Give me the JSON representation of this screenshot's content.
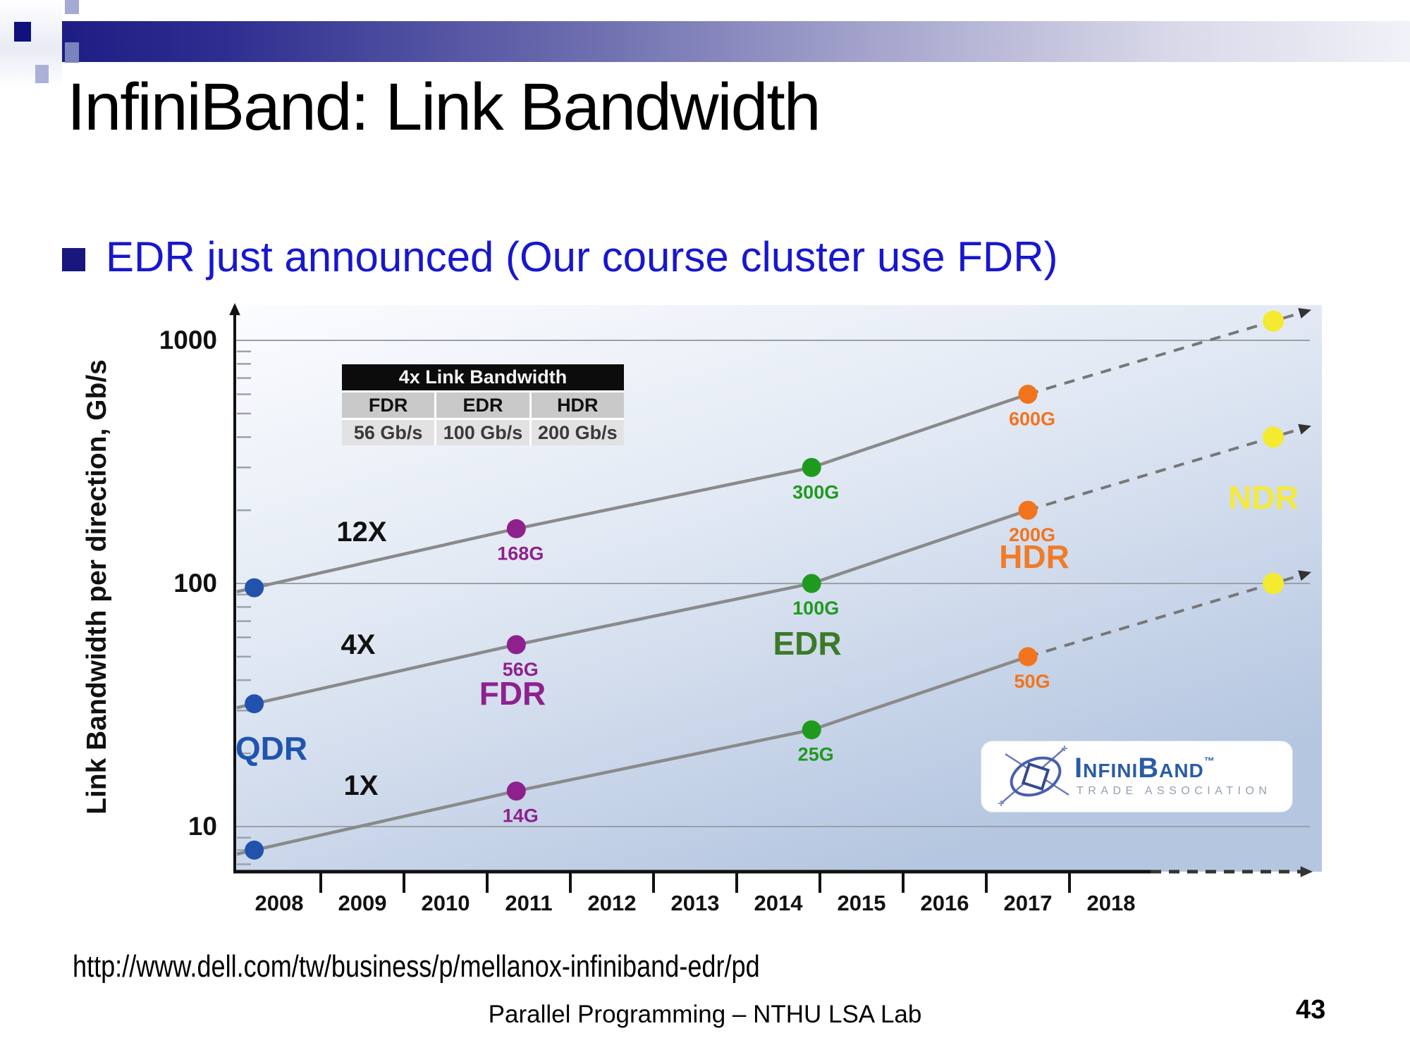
{
  "slide": {
    "title": "InfiniBand: Link Bandwidth",
    "bullet": "EDR just announced (Our course cluster use FDR)",
    "source_url": "http://www.dell.com/tw/business/p/mellanox-infiniband-edr/pd",
    "footer": "Parallel Programming – NTHU LSA Lab",
    "page_number": "43"
  },
  "logo": {
    "name": "InfiniBand",
    "tm": "™",
    "subtitle": "TRADE ASSOCIATION"
  },
  "chart_data": {
    "type": "line",
    "title": "",
    "ylabel": "Link Bandwidth per direction, Gb/s",
    "y_scale": "log",
    "y_ticks": [
      1000,
      100,
      10
    ],
    "x_tick_years": [
      2008,
      2009,
      2010,
      2011,
      2012,
      2013,
      2014,
      2015,
      2016,
      2017,
      2018
    ],
    "table": {
      "title": "4x Link Bandwidth",
      "columns": [
        "FDR",
        "EDR",
        "HDR"
      ],
      "values": [
        "56 Gb/s",
        "100 Gb/s",
        "200 Gb/s"
      ]
    },
    "generation_colors": {
      "QDR": "#2153ad",
      "FDR": "#8e218e",
      "EDR": "#1f9a1f",
      "HDR": "#f2741c",
      "NDR": "#f4ea2f"
    },
    "series": [
      {
        "name": "12X",
        "points": [
          {
            "year": 2007.7,
            "gbps": 96,
            "gen": "QDR",
            "label": ""
          },
          {
            "year": 2010.85,
            "gbps": 168,
            "gen": "FDR",
            "label": "168G"
          },
          {
            "year": 2014.4,
            "gbps": 300,
            "gen": "EDR",
            "label": "300G"
          },
          {
            "year": 2017,
            "gbps": 600,
            "gen": "HDR",
            "label": "600G"
          }
        ],
        "projected": [
          {
            "year": 2019.95,
            "gbps": 1200,
            "gen": "NDR",
            "label": ""
          }
        ]
      },
      {
        "name": "4X",
        "points": [
          {
            "year": 2007.7,
            "gbps": 32,
            "gen": "QDR",
            "label": ""
          },
          {
            "year": 2010.85,
            "gbps": 56,
            "gen": "FDR",
            "label": "56G"
          },
          {
            "year": 2014.4,
            "gbps": 100,
            "gen": "EDR",
            "label": "100G"
          },
          {
            "year": 2017,
            "gbps": 200,
            "gen": "HDR",
            "label": "200G"
          }
        ],
        "projected": [
          {
            "year": 2019.95,
            "gbps": 400,
            "gen": "NDR",
            "label": ""
          }
        ]
      },
      {
        "name": "1X",
        "points": [
          {
            "year": 2007.7,
            "gbps": 8,
            "gen": "QDR",
            "label": ""
          },
          {
            "year": 2010.85,
            "gbps": 14,
            "gen": "FDR",
            "label": "14G"
          },
          {
            "year": 2014.4,
            "gbps": 25,
            "gen": "EDR",
            "label": "25G"
          },
          {
            "year": 2017,
            "gbps": 50,
            "gen": "HDR",
            "label": "50G"
          }
        ],
        "projected": [
          {
            "year": 2019.95,
            "gbps": 100,
            "gen": "NDR",
            "label": ""
          }
        ]
      }
    ],
    "annotations": [
      {
        "text": "12X",
        "color": "#111111"
      },
      {
        "text": "4X",
        "color": "#111111"
      },
      {
        "text": "1X",
        "color": "#111111"
      },
      {
        "text": "QDR",
        "color": "#1f55b0"
      },
      {
        "text": "FDR",
        "color": "#8e218e"
      },
      {
        "text": "EDR",
        "color": "#3c7a28"
      },
      {
        "text": "HDR",
        "color": "#f07c28"
      },
      {
        "text": "NDR",
        "color": "#f3ea3c"
      }
    ]
  }
}
